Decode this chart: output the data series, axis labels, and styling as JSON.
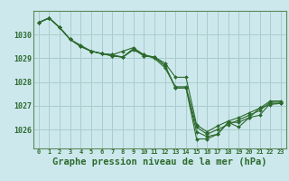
{
  "background_color": "#cce8ec",
  "grid_color": "#aacccc",
  "line_color": "#2d6a2d",
  "marker_color": "#2d6a2d",
  "xlabel": "Graphe pression niveau de la mer (hPa)",
  "xlabel_fontsize": 7.5,
  "ylabel_ticks": [
    1026,
    1027,
    1028,
    1029,
    1030
  ],
  "xlim": [
    -0.5,
    23.5
  ],
  "ylim": [
    1025.2,
    1031.0
  ],
  "hours": [
    0,
    1,
    2,
    3,
    4,
    5,
    6,
    7,
    8,
    9,
    10,
    11,
    12,
    13,
    14,
    15,
    16,
    17,
    18,
    19,
    20,
    21,
    22,
    23
  ],
  "series": [
    [
      1030.5,
      1030.7,
      1030.3,
      1029.8,
      1029.5,
      1029.3,
      1029.2,
      1029.1,
      1029.05,
      1029.4,
      1029.1,
      1029.05,
      1028.7,
      1027.75,
      1027.75,
      1025.9,
      1025.7,
      1025.8,
      1026.3,
      1026.3,
      1026.5,
      1026.6,
      1027.1,
      1027.1
    ],
    [
      1030.5,
      1030.7,
      1030.3,
      1029.8,
      1029.5,
      1029.3,
      1029.2,
      1029.1,
      1029.05,
      1029.4,
      1029.1,
      1029.05,
      1028.7,
      1027.75,
      1027.75,
      1025.6,
      1025.6,
      1025.8,
      1026.3,
      1026.1,
      1026.5,
      1026.9,
      1027.05,
      1027.1
    ],
    [
      1030.5,
      1030.7,
      1030.3,
      1029.8,
      1029.55,
      1029.3,
      1029.2,
      1029.15,
      1029.05,
      1029.35,
      1029.15,
      1029.0,
      1028.6,
      1027.8,
      1027.8,
      1026.1,
      1025.8,
      1026.0,
      1026.2,
      1026.4,
      1026.6,
      1026.8,
      1027.15,
      1027.15
    ],
    [
      1030.5,
      1030.7,
      1030.3,
      1029.8,
      1029.5,
      1029.3,
      1029.2,
      1029.15,
      1029.3,
      1029.45,
      1029.15,
      1029.05,
      1028.8,
      1028.2,
      1028.2,
      1026.2,
      1025.9,
      1026.15,
      1026.35,
      1026.5,
      1026.7,
      1026.9,
      1027.2,
      1027.2
    ]
  ]
}
